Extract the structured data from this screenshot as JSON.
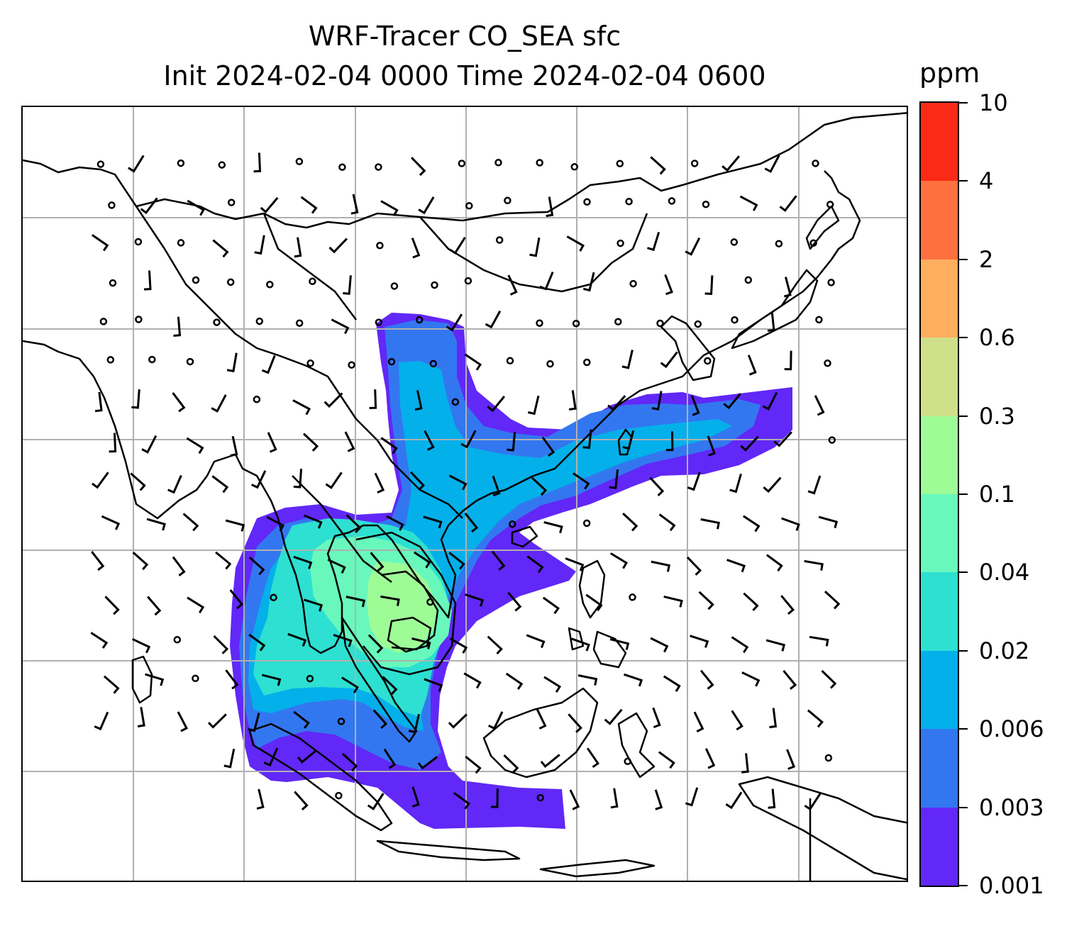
{
  "title": {
    "line1": "WRF-Tracer CO_SEA sfc",
    "line2": "Init 2024-02-04 0000 Time 2024-02-04 0600"
  },
  "colorbar": {
    "unit": "ppm",
    "levels": [
      "0.001",
      "0.003",
      "0.006",
      "0.02",
      "0.04",
      "0.1",
      "0.3",
      "0.6",
      "2",
      "4",
      "10"
    ],
    "colors": [
      "#6128f7",
      "#3377f0",
      "#04b0ea",
      "#2de0d1",
      "#68f8bc",
      "#9efc97",
      "#d0e08a",
      "#feae5e",
      "#fe7040",
      "#fb2a16"
    ]
  },
  "map_style": {
    "coastline_color": "#000000",
    "gridline_color": "#b0b0b0",
    "gridlines": true
  },
  "wind_barbs": {
    "color": "#000000",
    "calm_marker": "open circle"
  }
}
